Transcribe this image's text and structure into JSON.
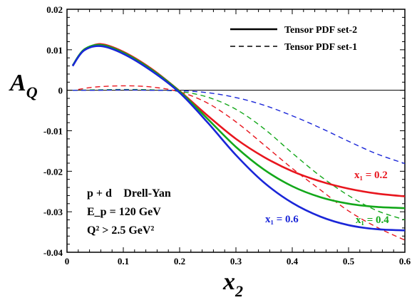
{
  "chart_data": {
    "type": "line",
    "xlabel": "x₂",
    "ylabel": "A_Q",
    "xlim": [
      0,
      0.6
    ],
    "ylim": [
      -0.04,
      0.02
    ],
    "x_ticks": [
      "0",
      "0.1",
      "0.2",
      "0.3",
      "0.4",
      "0.5",
      "0.6"
    ],
    "y_ticks": [
      "0.02",
      "0.01",
      "0",
      "-0.01",
      "-0.02",
      "-0.03",
      "-0.04"
    ],
    "grid": false,
    "legend": {
      "placement": "top-right",
      "entries": [
        {
          "label": "Tensor PDF set-2",
          "style": "solid"
        },
        {
          "label": "Tensor PDF set-1",
          "style": "dashed"
        }
      ]
    },
    "annotation": {
      "line1": "p + d⃗ Drell-Yan",
      "line2": "E_p = 120 GeV",
      "line3": "Q² > 2.5 GeV²"
    },
    "curve_labels": [
      {
        "text": "x₁ = 0.2",
        "color": "#e8161e"
      },
      {
        "text": "x₁ = 0.4",
        "color": "#13a81a"
      },
      {
        "text": "x₁ = 0.6",
        "color": "#1a26d8"
      }
    ],
    "series": [
      {
        "set": "Tensor PDF set-2",
        "x1": "0.2",
        "style": "solid",
        "color": "#e8161e",
        "x": [
          0.03,
          0.06,
          0.1,
          0.15,
          0.2,
          0.25,
          0.3,
          0.35,
          0.4,
          0.45,
          0.5,
          0.55,
          0.6
        ],
        "y": [
          0.0101,
          0.0114,
          0.0095,
          0.0053,
          -0.0002,
          -0.0063,
          -0.012,
          -0.0165,
          -0.02,
          -0.0225,
          -0.0243,
          -0.0255,
          -0.0262
        ]
      },
      {
        "set": "Tensor PDF set-2",
        "x1": "0.4",
        "style": "solid",
        "color": "#13a81a",
        "x": [
          0.01,
          0.03,
          0.06,
          0.1,
          0.15,
          0.2,
          0.25,
          0.3,
          0.35,
          0.4,
          0.45,
          0.5,
          0.55,
          0.6
        ],
        "y": [
          0.0061,
          0.01,
          0.0112,
          0.0093,
          0.0051,
          -0.0003,
          -0.0071,
          -0.014,
          -0.0196,
          -0.0237,
          -0.0264,
          -0.028,
          -0.0288,
          -0.0291
        ]
      },
      {
        "set": "Tensor PDF set-2",
        "x1": "0.6",
        "style": "solid",
        "color": "#1a26d8",
        "x": [
          0.01,
          0.03,
          0.06,
          0.1,
          0.15,
          0.2,
          0.25,
          0.3,
          0.35,
          0.4,
          0.45,
          0.5,
          0.55,
          0.6
        ],
        "y": [
          0.006,
          0.0098,
          0.0109,
          0.009,
          0.0048,
          -0.0006,
          -0.008,
          -0.016,
          -0.0228,
          -0.0278,
          -0.0312,
          -0.0333,
          -0.0343,
          -0.0346
        ]
      },
      {
        "set": "Tensor PDF set-1",
        "x1": "0.2",
        "style": "dashed",
        "color": "#e8161e",
        "x": [
          0.02,
          0.05,
          0.1,
          0.15,
          0.2,
          0.25,
          0.3,
          0.35,
          0.4,
          0.45,
          0.5,
          0.55,
          0.6
        ],
        "y": [
          0.0002,
          0.0008,
          0.0011,
          0.0008,
          -0.0004,
          -0.0032,
          -0.0078,
          -0.0135,
          -0.0193,
          -0.0246,
          -0.0298,
          -0.0338,
          -0.037
        ]
      },
      {
        "set": "Tensor PDF set-1",
        "x1": "0.4",
        "style": "dashed",
        "color": "#13a81a",
        "x": [
          0.01,
          0.05,
          0.1,
          0.15,
          0.2,
          0.25,
          0.3,
          0.35,
          0.4,
          0.45,
          0.5,
          0.55,
          0.6
        ],
        "y": [
          0.0,
          0.0001,
          0.0002,
          0.0001,
          -0.0003,
          -0.0017,
          -0.0047,
          -0.0095,
          -0.0155,
          -0.0212,
          -0.026,
          -0.0297,
          -0.032
        ]
      },
      {
        "set": "Tensor PDF set-1",
        "x1": "0.6",
        "style": "dashed",
        "color": "#1a26d8",
        "x": [
          0.01,
          0.05,
          0.1,
          0.15,
          0.2,
          0.25,
          0.3,
          0.35,
          0.4,
          0.45,
          0.5,
          0.55,
          0.6
        ],
        "y": [
          0.0,
          0.0,
          0.0001,
          0.0,
          -0.0001,
          -0.0006,
          -0.0018,
          -0.0037,
          -0.0063,
          -0.0093,
          -0.0126,
          -0.0157,
          -0.0181
        ]
      }
    ]
  }
}
